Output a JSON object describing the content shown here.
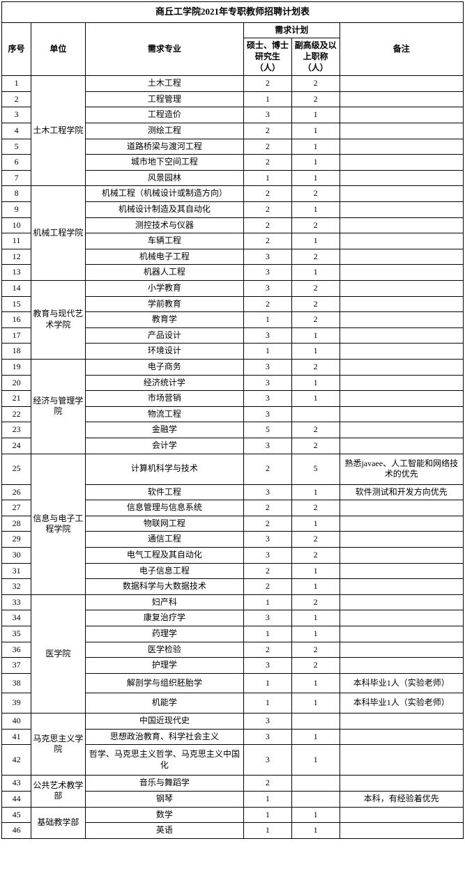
{
  "title": "商丘工学院2021年专职教师招聘计划表",
  "headers": {
    "seq": "序号",
    "dept": "单位",
    "major": "需求专业",
    "plan": "需求计划",
    "grad": "硕士、博士研究生（人）",
    "senior": "副高级及以上职称（人）",
    "note": "备注"
  },
  "departments": [
    {
      "name": "土木工程学院",
      "rows": [
        {
          "seq": "1",
          "major": "土木工程",
          "grad": "2",
          "senior": "2",
          "note": ""
        },
        {
          "seq": "2",
          "major": "工程管理",
          "grad": "1",
          "senior": "2",
          "note": ""
        },
        {
          "seq": "3",
          "major": "工程造价",
          "grad": "3",
          "senior": "1",
          "note": ""
        },
        {
          "seq": "4",
          "major": "测绘工程",
          "grad": "2",
          "senior": "1",
          "note": ""
        },
        {
          "seq": "5",
          "major": "道路桥梁与渡河工程",
          "grad": "2",
          "senior": "1",
          "note": ""
        },
        {
          "seq": "6",
          "major": "城市地下空间工程",
          "grad": "2",
          "senior": "1",
          "note": ""
        },
        {
          "seq": "7",
          "major": "风景园林",
          "grad": "1",
          "senior": "1",
          "note": ""
        }
      ]
    },
    {
      "name": "机械工程学院",
      "rows": [
        {
          "seq": "8",
          "major": "机械工程（机械设计或制造方向）",
          "grad": "2",
          "senior": "2",
          "note": ""
        },
        {
          "seq": "9",
          "major": "机械设计制造及其自动化",
          "grad": "2",
          "senior": "1",
          "note": ""
        },
        {
          "seq": "10",
          "major": "测控技术与仪器",
          "grad": "2",
          "senior": "2",
          "note": ""
        },
        {
          "seq": "11",
          "major": "车辆工程",
          "grad": "2",
          "senior": "1",
          "note": ""
        },
        {
          "seq": "12",
          "major": "机械电子工程",
          "grad": "3",
          "senior": "2",
          "note": ""
        },
        {
          "seq": "13",
          "major": "机器人工程",
          "grad": "3",
          "senior": "1",
          "note": ""
        }
      ]
    },
    {
      "name": "教育与现代艺术学院",
      "rows": [
        {
          "seq": "14",
          "major": "小学教育",
          "grad": "3",
          "senior": "2",
          "note": ""
        },
        {
          "seq": "15",
          "major": "学前教育",
          "grad": "2",
          "senior": "2",
          "note": ""
        },
        {
          "seq": "16",
          "major": "教育学",
          "grad": "1",
          "senior": "2",
          "note": ""
        },
        {
          "seq": "17",
          "major": "产品设计",
          "grad": "3",
          "senior": "1",
          "note": ""
        },
        {
          "seq": "18",
          "major": "环境设计",
          "grad": "1",
          "senior": "1",
          "note": ""
        }
      ]
    },
    {
      "name": "经济与管理学院",
      "rows": [
        {
          "seq": "19",
          "major": "电子商务",
          "grad": "3",
          "senior": "2",
          "note": ""
        },
        {
          "seq": "20",
          "major": "经济统计学",
          "grad": "3",
          "senior": "1",
          "note": ""
        },
        {
          "seq": "21",
          "major": "市场营销",
          "grad": "3",
          "senior": "1",
          "note": ""
        },
        {
          "seq": "22",
          "major": "物流工程",
          "grad": "3",
          "senior": "",
          "note": ""
        },
        {
          "seq": "23",
          "major": "金融学",
          "grad": "5",
          "senior": "2",
          "note": ""
        },
        {
          "seq": "24",
          "major": "会计学",
          "grad": "3",
          "senior": "2",
          "note": ""
        }
      ]
    },
    {
      "name": "信息与电子工程学院",
      "rows": [
        {
          "seq": "25",
          "major": "计算机科学与技术",
          "grad": "2",
          "senior": "5",
          "note": "熟悉javaee、人工智能和网络技术的优先",
          "tall": true
        },
        {
          "seq": "26",
          "major": "软件工程",
          "grad": "3",
          "senior": "1",
          "note": "软件测试和开发方向优先"
        },
        {
          "seq": "27",
          "major": "信息管理与信息系统",
          "grad": "2",
          "senior": "2",
          "note": ""
        },
        {
          "seq": "28",
          "major": "物联网工程",
          "grad": "2",
          "senior": "1",
          "note": ""
        },
        {
          "seq": "29",
          "major": "通信工程",
          "grad": "3",
          "senior": "2",
          "note": ""
        },
        {
          "seq": "30",
          "major": "电气工程及其自动化",
          "grad": "3",
          "senior": "2",
          "note": ""
        },
        {
          "seq": "31",
          "major": "电子信息工程",
          "grad": "2",
          "senior": "1",
          "note": ""
        },
        {
          "seq": "32",
          "major": "数据科学与大数据技术",
          "grad": "2",
          "senior": "1",
          "note": ""
        }
      ]
    },
    {
      "name": "医学院",
      "rows": [
        {
          "seq": "33",
          "major": "妇产科",
          "grad": "1",
          "senior": "2",
          "note": ""
        },
        {
          "seq": "34",
          "major": "康复治疗学",
          "grad": "3",
          "senior": "1",
          "note": ""
        },
        {
          "seq": "35",
          "major": "药理学",
          "grad": "1",
          "senior": "1",
          "note": ""
        },
        {
          "seq": "36",
          "major": "医学检验",
          "grad": "2",
          "senior": "2",
          "note": ""
        },
        {
          "seq": "37",
          "major": "护理学",
          "grad": "3",
          "senior": "2",
          "note": ""
        },
        {
          "seq": "38",
          "major": "解剖学与组织胚胎学",
          "grad": "1",
          "senior": "1",
          "note": "本科毕业1人（实验老师）",
          "tall": true
        },
        {
          "seq": "39",
          "major": "机能学",
          "grad": "1",
          "senior": "1",
          "note": "本科毕业1人（实验老师）",
          "tall": true
        }
      ]
    },
    {
      "name": "马克思主义学院",
      "rows": [
        {
          "seq": "40",
          "major": "中国近现代史",
          "grad": "3",
          "senior": "",
          "note": ""
        },
        {
          "seq": "41",
          "major": "思想政治教育、科学社会主义",
          "grad": "3",
          "senior": "1",
          "note": ""
        },
        {
          "seq": "42",
          "major": "哲学、马克思主义哲学、马克思主义中国化",
          "grad": "3",
          "senior": "1",
          "note": "",
          "tall": true
        }
      ]
    },
    {
      "name": "公共艺术教学部",
      "rows": [
        {
          "seq": "43",
          "major": "音乐与舞蹈学",
          "grad": "2",
          "senior": "",
          "note": ""
        },
        {
          "seq": "44",
          "major": "钢琴",
          "grad": "1",
          "senior": "",
          "note": "本科，有经验着优先"
        }
      ]
    },
    {
      "name": "基础教学部",
      "rows": [
        {
          "seq": "45",
          "major": "数学",
          "grad": "1",
          "senior": "1",
          "note": ""
        },
        {
          "seq": "46",
          "major": "英语",
          "grad": "1",
          "senior": "1",
          "note": ""
        }
      ]
    }
  ]
}
